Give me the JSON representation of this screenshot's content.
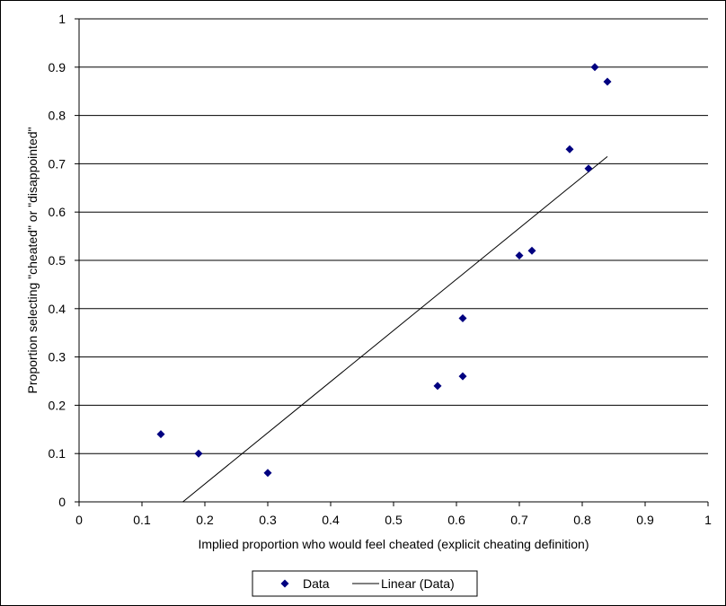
{
  "chart_data": {
    "type": "scatter",
    "title": "",
    "xlabel": "Implied proportion who would feel cheated (explicit cheating definition)",
    "ylabel": "Proportion selecting  \"cheated\" or \"disappointed\"",
    "xlim": [
      0,
      1
    ],
    "ylim": [
      0,
      1
    ],
    "x_ticks": [
      "0",
      "0.1",
      "0.2",
      "0.3",
      "0.4",
      "0.5",
      "0.6",
      "0.7",
      "0.8",
      "0.9",
      "1"
    ],
    "y_ticks": [
      "0",
      "0.1",
      "0.2",
      "0.3",
      "0.4",
      "0.5",
      "0.6",
      "0.7",
      "0.8",
      "0.9",
      "1"
    ],
    "grid": "horizontal",
    "legend_position": "bottom",
    "series": [
      {
        "name": "Data",
        "type": "scatter",
        "marker": "diamond",
        "color": "#000080",
        "points": [
          {
            "x": 0.13,
            "y": 0.14
          },
          {
            "x": 0.19,
            "y": 0.1
          },
          {
            "x": 0.3,
            "y": 0.06
          },
          {
            "x": 0.57,
            "y": 0.24
          },
          {
            "x": 0.61,
            "y": 0.26
          },
          {
            "x": 0.61,
            "y": 0.38
          },
          {
            "x": 0.7,
            "y": 0.51
          },
          {
            "x": 0.72,
            "y": 0.52
          },
          {
            "x": 0.78,
            "y": 0.73
          },
          {
            "x": 0.81,
            "y": 0.69
          },
          {
            "x": 0.82,
            "y": 0.9
          },
          {
            "x": 0.84,
            "y": 0.87
          }
        ]
      },
      {
        "name": "Linear (Data)",
        "type": "line",
        "color": "#000000",
        "points": [
          {
            "x": 0.165,
            "y": 0.0
          },
          {
            "x": 0.84,
            "y": 0.715
          }
        ]
      }
    ]
  }
}
